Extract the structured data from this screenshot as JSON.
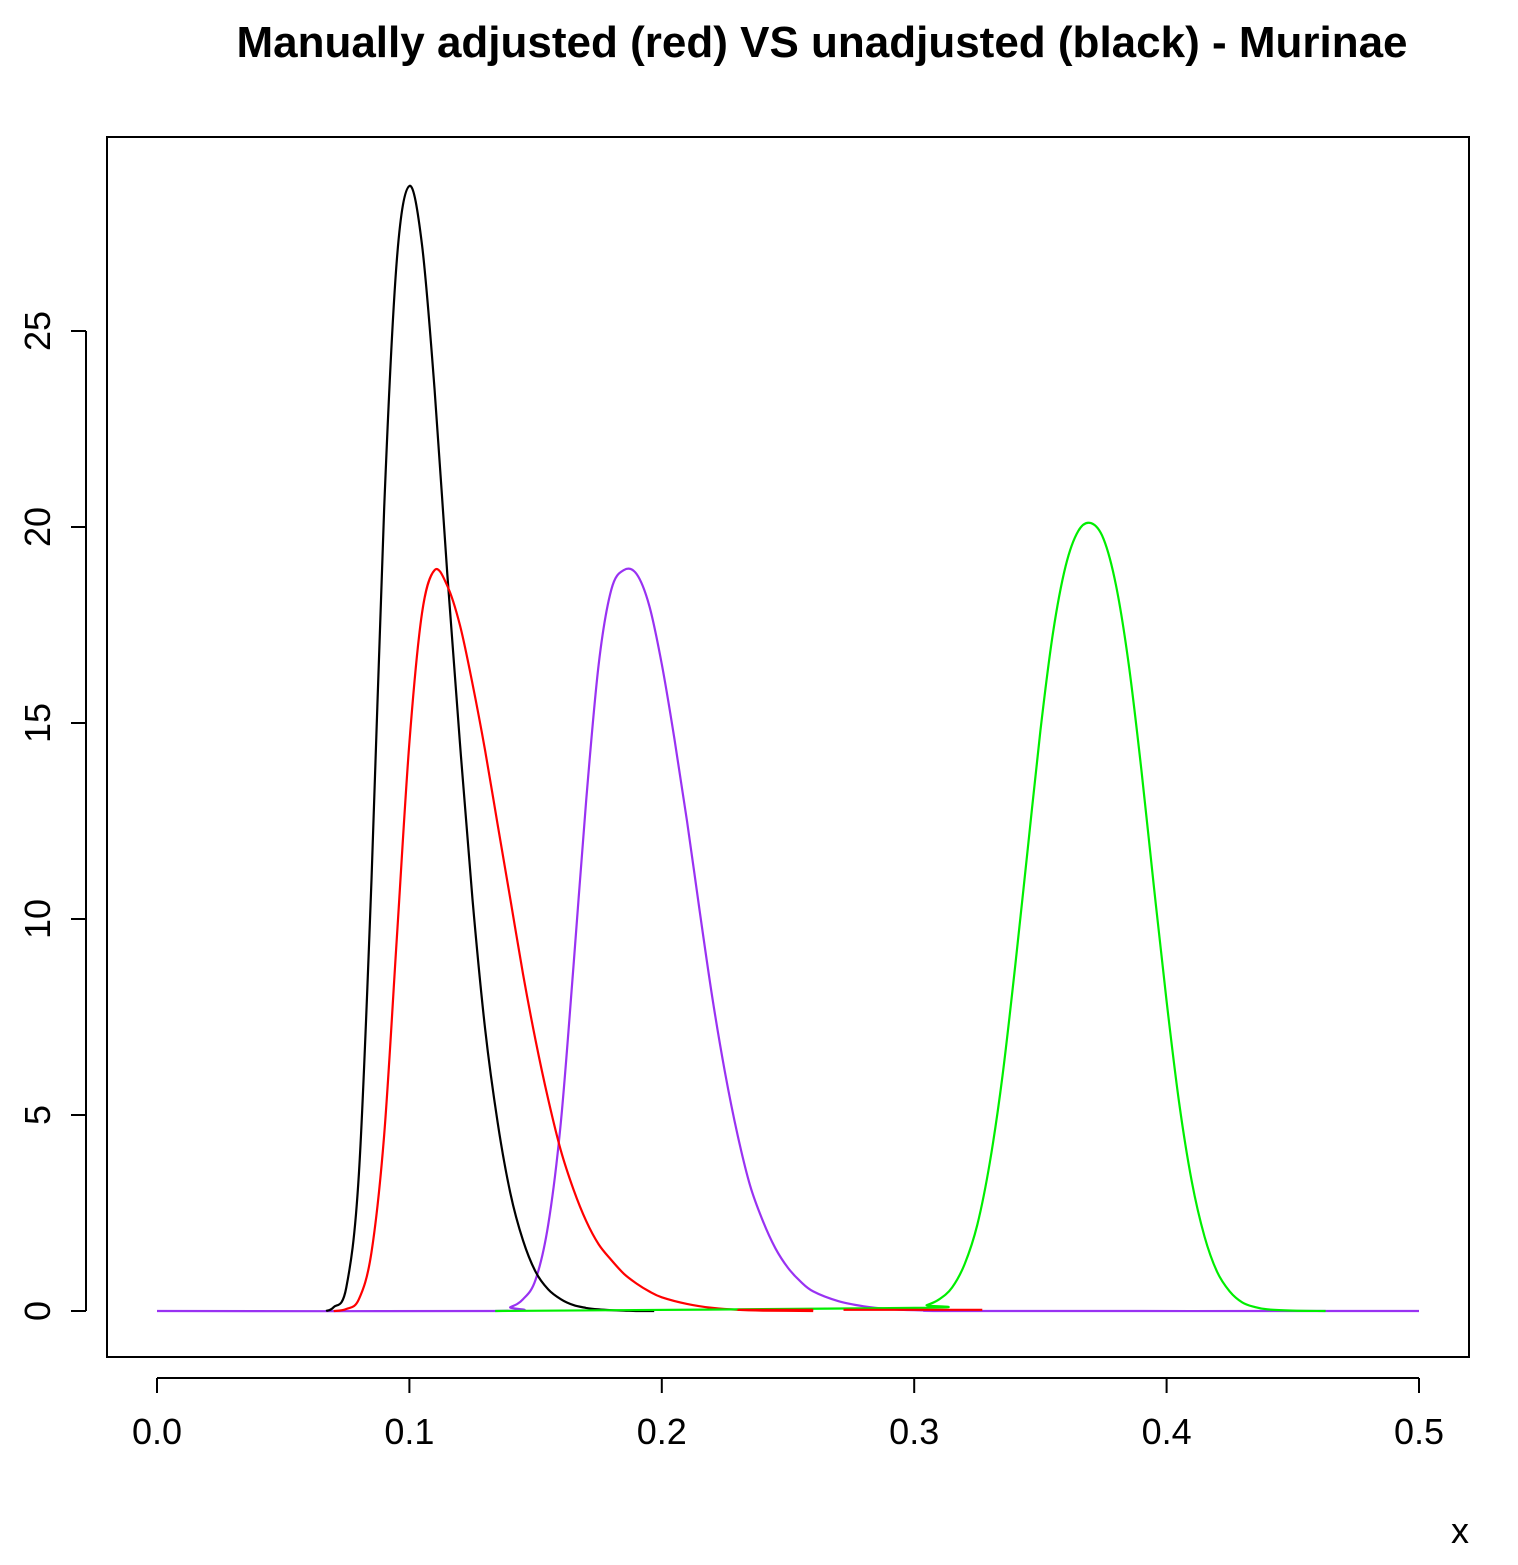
{
  "chart_data": {
    "type": "line",
    "title": "Manually adjusted (red) VS unadjusted (black) - Murinae",
    "xlabel": "x",
    "ylabel": "",
    "xlim": [
      0.0,
      0.5
    ],
    "ylim": [
      0,
      29
    ],
    "x_ticks": [
      0.0,
      0.1,
      0.2,
      0.3,
      0.4,
      0.5
    ],
    "x_tick_labels": [
      "0.0",
      "0.1",
      "0.2",
      "0.3",
      "0.4",
      "0.5"
    ],
    "y_ticks": [
      0,
      5,
      10,
      15,
      20,
      25
    ],
    "y_tick_labels": [
      "0",
      "5",
      "10",
      "15",
      "20",
      "25"
    ],
    "grid": false,
    "legend": "none",
    "series": [
      {
        "color": "#9932f2",
        "x": [
          0.0,
          0.134,
          0.14,
          0.145,
          0.15,
          0.155,
          0.16,
          0.165,
          0.17,
          0.175,
          0.18,
          0.185,
          0.19,
          0.195,
          0.2,
          0.205,
          0.21,
          0.215,
          0.22,
          0.225,
          0.23,
          0.235,
          0.24,
          0.245,
          0.25,
          0.255,
          0.26,
          0.27,
          0.28,
          0.29,
          0.3,
          0.31,
          0.32,
          0.5
        ],
        "y": [
          0,
          0.0,
          0.1,
          0.3,
          0.8,
          2.2,
          4.8,
          8.8,
          13.0,
          16.5,
          18.4,
          18.9,
          18.8,
          18.0,
          16.5,
          14.6,
          12.5,
          10.2,
          8.0,
          6.1,
          4.5,
          3.2,
          2.3,
          1.6,
          1.1,
          0.75,
          0.5,
          0.25,
          0.12,
          0.05,
          0.02,
          0.01,
          0.0,
          0
        ]
      },
      {
        "color": "#000000",
        "x": [
          0.067,
          0.07,
          0.075,
          0.08,
          0.085,
          0.09,
          0.095,
          0.1,
          0.105,
          0.11,
          0.115,
          0.12,
          0.125,
          0.13,
          0.135,
          0.14,
          0.145,
          0.15,
          0.155,
          0.16,
          0.165,
          0.17,
          0.175,
          0.18,
          0.185,
          0.19,
          0.197
        ],
        "y": [
          0.0,
          0.1,
          0.6,
          3.5,
          11.0,
          20.5,
          26.8,
          28.7,
          27.2,
          23.5,
          18.8,
          14.5,
          10.5,
          7.2,
          4.8,
          3.0,
          1.8,
          1.0,
          0.55,
          0.3,
          0.15,
          0.08,
          0.04,
          0.02,
          0.01,
          0.0,
          0.0
        ]
      },
      {
        "color": "#ff0000",
        "x": [
          0.07,
          0.075,
          0.08,
          0.085,
          0.09,
          0.095,
          0.1,
          0.105,
          0.11,
          0.115,
          0.12,
          0.125,
          0.13,
          0.135,
          0.14,
          0.145,
          0.15,
          0.155,
          0.16,
          0.165,
          0.17,
          0.175,
          0.18,
          0.185,
          0.19,
          0.195,
          0.2,
          0.21,
          0.22,
          0.23,
          0.24,
          0.26
        ],
        "y": [
          0.0,
          0.05,
          0.3,
          1.5,
          4.5,
          9.5,
          14.5,
          17.8,
          18.9,
          18.5,
          17.5,
          16.0,
          14.3,
          12.4,
          10.5,
          8.6,
          6.9,
          5.4,
          4.1,
          3.1,
          2.3,
          1.7,
          1.3,
          0.95,
          0.7,
          0.5,
          0.35,
          0.18,
          0.08,
          0.03,
          0.01,
          0.0
        ]
      },
      {
        "color": "#00ee00",
        "x": [
          0.134,
          0.3,
          0.305,
          0.31,
          0.315,
          0.32,
          0.325,
          0.33,
          0.335,
          0.34,
          0.345,
          0.35,
          0.355,
          0.36,
          0.365,
          0.37,
          0.375,
          0.38,
          0.385,
          0.39,
          0.395,
          0.4,
          0.405,
          0.41,
          0.415,
          0.42,
          0.425,
          0.43,
          0.435,
          0.44,
          0.45,
          0.463
        ],
        "y": [
          0.0,
          0.08,
          0.15,
          0.3,
          0.6,
          1.2,
          2.2,
          3.8,
          6.0,
          8.8,
          11.8,
          14.8,
          17.3,
          19.0,
          19.9,
          20.1,
          19.7,
          18.5,
          16.5,
          13.8,
          10.8,
          7.9,
          5.3,
          3.3,
          1.9,
          1.0,
          0.5,
          0.22,
          0.1,
          0.04,
          0.01,
          0.0
        ]
      },
      {
        "color": "#ff0000",
        "x": [
          0.23,
          0.26
        ],
        "y": [
          0.03,
          0.03
        ]
      },
      {
        "color": "#ff0000",
        "x": [
          0.272,
          0.327
        ],
        "y": [
          0.03,
          0.03
        ]
      }
    ]
  }
}
